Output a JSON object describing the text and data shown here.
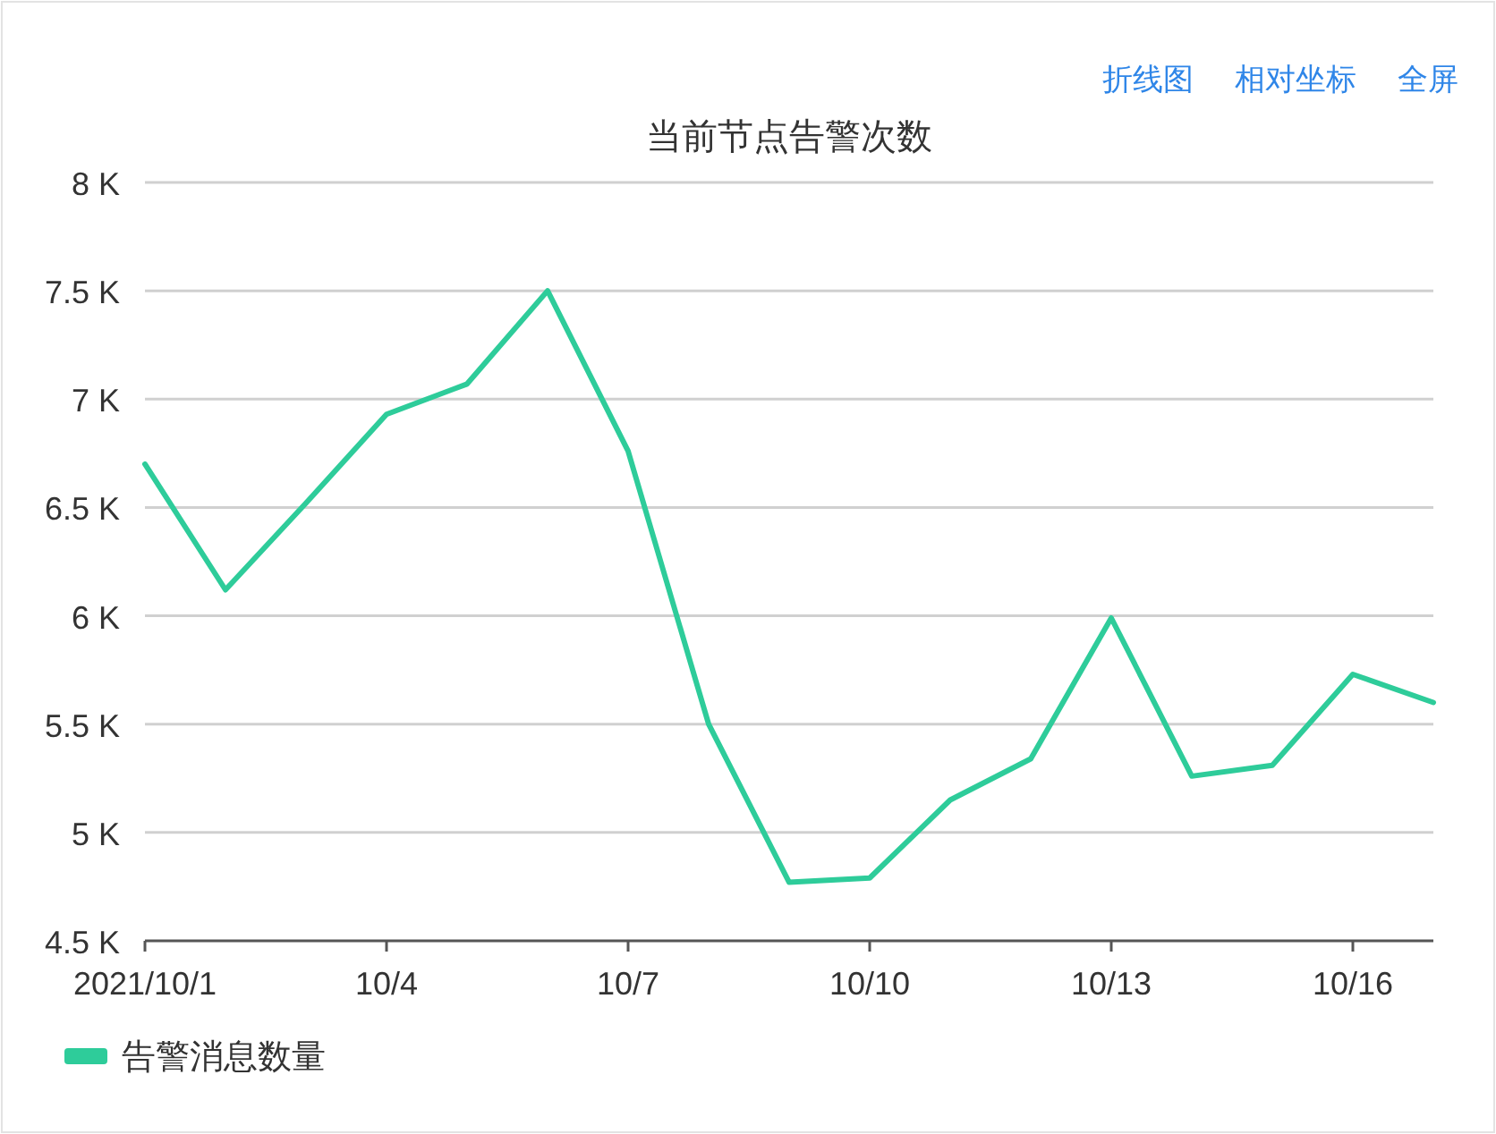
{
  "chart_data": {
    "type": "line",
    "title": "当前节点告警次数",
    "annotations": [
      "折线图",
      "相对坐标",
      "全屏"
    ],
    "categories": [
      "2021/10/1",
      null,
      null,
      "10/4",
      null,
      null,
      "10/7",
      null,
      null,
      "10/10",
      null,
      null,
      "10/13",
      null,
      null,
      "10/16",
      null
    ],
    "series": [
      {
        "name": "告警消息数量",
        "color": "#2ecc9a",
        "values": [
          6700,
          6120,
          6520,
          6930,
          7070,
          7500,
          6760,
          5500,
          4770,
          4790,
          5150,
          5340,
          5990,
          5260,
          5310,
          5730,
          5600
        ]
      }
    ],
    "ylim": [
      4500,
      8000
    ],
    "yticks": [
      {
        "value": 4500,
        "label": "4.5 K"
      },
      {
        "value": 5000,
        "label": "5 K"
      },
      {
        "value": 5500,
        "label": "5.5 K"
      },
      {
        "value": 6000,
        "label": "6 K"
      },
      {
        "value": 6500,
        "label": "6.5 K"
      },
      {
        "value": 7000,
        "label": "7 K"
      },
      {
        "value": 7500,
        "label": "7.5 K"
      },
      {
        "value": 8000,
        "label": "8 K"
      }
    ],
    "grid": "y",
    "legend": "bottom left",
    "marker": "none",
    "line_style": "solid"
  }
}
